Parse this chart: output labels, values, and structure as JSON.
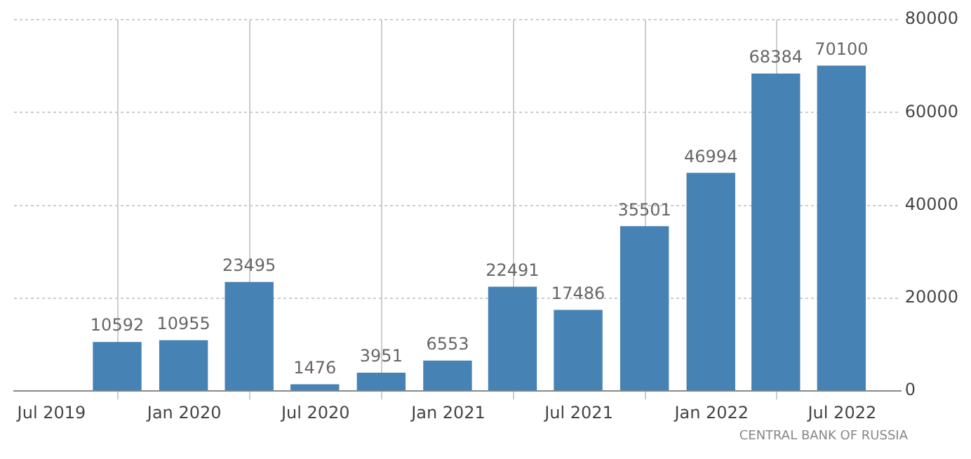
{
  "chart_data": {
    "type": "bar",
    "x": [
      "2019-09-30",
      "2019-12-31",
      "2020-03-31",
      "2020-06-30",
      "2020-09-30",
      "2020-12-31",
      "2021-03-31",
      "2021-06-30",
      "2021-09-30",
      "2021-12-31",
      "2022-03-31",
      "2022-06-30"
    ],
    "values": [
      10592,
      10955,
      23495,
      1476,
      3951,
      6553,
      22491,
      17486,
      35501,
      46994,
      68384,
      70100
    ],
    "color": "#4682b4",
    "data_labels": true,
    "xlim": [
      "2019-05-10",
      "2022-09-20"
    ],
    "xticks": [
      {
        "value": "2019-07-01",
        "label": "Jul 2019"
      },
      {
        "value": "2020-01-01",
        "label": "Jan 2020"
      },
      {
        "value": "2020-07-01",
        "label": "Jul 2020"
      },
      {
        "value": "2021-01-01",
        "label": "Jan 2021"
      },
      {
        "value": "2021-07-01",
        "label": "Jul 2021"
      },
      {
        "value": "2022-01-01",
        "label": "Jan 2022"
      },
      {
        "value": "2022-07-01",
        "label": "Jul 2022"
      }
    ],
    "ylim": [
      0,
      80000
    ],
    "yticks": [
      0,
      20000,
      40000,
      60000,
      80000
    ],
    "grid": true,
    "annotations": [
      "CENTRAL BANK OF RUSSIA"
    ]
  }
}
